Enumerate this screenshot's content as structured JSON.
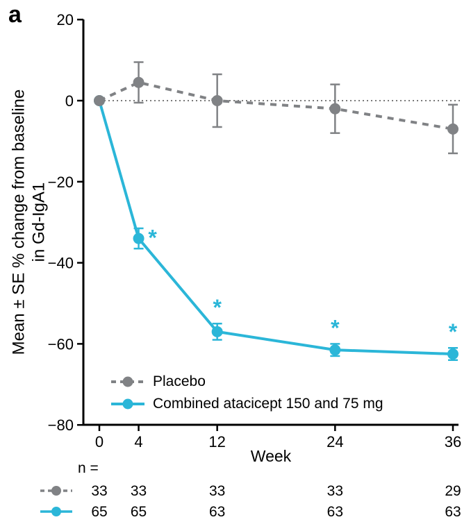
{
  "panel_label": "a",
  "colors": {
    "placebo": "#808285",
    "atacicept": "#2BB6D8",
    "axis": "#000000"
  },
  "chart_data": {
    "type": "line",
    "title": "",
    "xlabel": "Week",
    "ylabel": "Mean ± SE % change from baseline\nin Gd-IgA1",
    "x": [
      0,
      4,
      12,
      24,
      36
    ],
    "xticks": [
      0,
      4,
      12,
      24,
      36
    ],
    "yticks": [
      20,
      0,
      -20,
      -40,
      -60,
      -80
    ],
    "xlim": [
      0,
      36
    ],
    "ylim": [
      -80,
      20
    ],
    "zero_line": true,
    "grid": false,
    "legend_position": "inside-bottom-left",
    "significance_symbol": "*",
    "n_label": "n =",
    "series": [
      {
        "name": "Placebo",
        "color": "#808285",
        "line_style": "dashed",
        "marker": "circle",
        "values": [
          0,
          4.5,
          0,
          -2,
          -7
        ],
        "errors": [
          0,
          5,
          6.5,
          6,
          6
        ],
        "significant": [
          false,
          false,
          false,
          false,
          false
        ],
        "n": [
          33,
          33,
          33,
          33,
          29
        ]
      },
      {
        "name": "Combined atacicept 150 and 75 mg",
        "color": "#2BB6D8",
        "line_style": "solid",
        "marker": "circle",
        "values": [
          0,
          -34,
          -57,
          -61.5,
          -62.5
        ],
        "errors": [
          0,
          2.5,
          2,
          1.5,
          1.5
        ],
        "significant": [
          false,
          true,
          true,
          true,
          true
        ],
        "n": [
          65,
          65,
          63,
          63,
          63
        ]
      }
    ]
  }
}
